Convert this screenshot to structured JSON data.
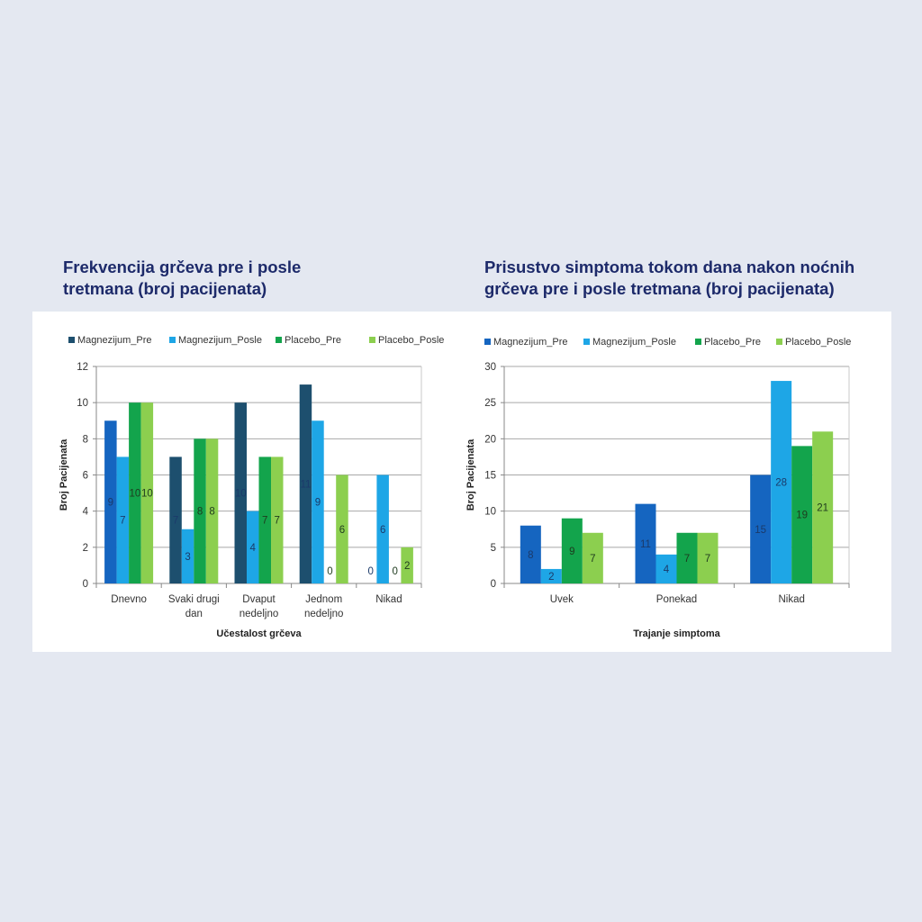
{
  "chart_data": [
    {
      "type": "bar",
      "title": "Frekvencija grčeva pre i posle tretmana (broj pacijenata)",
      "title_lines": [
        "Frekvencija grčeva pre i posle",
        "tretmana (broj pacijenata)"
      ],
      "xlabel": "Učestalost grčeva",
      "ylabel": "Broj Pacijenata",
      "ylim": [
        0,
        12
      ],
      "yticks": [
        0,
        2,
        4,
        6,
        8,
        10,
        12
      ],
      "grid": true,
      "legend": "top",
      "categories": [
        "Dnevno",
        "Svaki drugi dan",
        "Dvaput nedeljno",
        "Jednom nedeljno",
        "Nikad"
      ],
      "category_lines": [
        [
          "Dnevno"
        ],
        [
          "Svaki drugi",
          "dan"
        ],
        [
          "Dvaput",
          "nedeljno"
        ],
        [
          "Jednom",
          "nedeljno"
        ],
        [
          "Nikad"
        ]
      ],
      "series": [
        {
          "name": "Magnezijum_Pre",
          "color": "#1d4f6e",
          "point_colors": [
            "#1565c0",
            null,
            null,
            null,
            null
          ],
          "values": [
            9,
            7,
            10,
            11,
            0
          ]
        },
        {
          "name": "Magnezijum_Posle",
          "color": "#1ea6e6",
          "values": [
            7,
            3,
            4,
            9,
            6
          ]
        },
        {
          "name": "Placebo_Pre",
          "color": "#13a44c",
          "values": [
            10,
            8,
            7,
            0,
            0
          ]
        },
        {
          "name": "Placebo_Posle",
          "color": "#8ccf4f",
          "values": [
            10,
            8,
            7,
            6,
            2
          ]
        }
      ]
    },
    {
      "type": "bar",
      "title": "Prisustvo simptoma tokom dana nakon noćnih grčeva pre i posle tretmana (broj pacijenata)",
      "title_lines": [
        "Prisustvo simptoma tokom dana nakon noćnih",
        "grčeva pre i posle tretmana (broj pacijenata)"
      ],
      "xlabel": "Trajanje simptoma",
      "ylabel": "Broj Pacijenata",
      "ylim": [
        0,
        30
      ],
      "yticks": [
        0,
        5,
        10,
        15,
        20,
        25,
        30
      ],
      "grid": true,
      "legend": "top",
      "categories": [
        "Uvek",
        "Ponekad",
        "Nikad"
      ],
      "category_lines": [
        [
          "Uvek"
        ],
        [
          "Ponekad"
        ],
        [
          "Nikad"
        ]
      ],
      "series": [
        {
          "name": "Magnezijum_Pre",
          "color": "#1565c0",
          "values": [
            8,
            11,
            15
          ]
        },
        {
          "name": "Magnezijum_Posle",
          "color": "#1ea6e6",
          "values": [
            2,
            4,
            28
          ]
        },
        {
          "name": "Placebo_Pre",
          "color": "#13a44c",
          "values": [
            9,
            7,
            19
          ]
        },
        {
          "name": "Placebo_Posle",
          "color": "#8ccf4f",
          "values": [
            7,
            7,
            21
          ]
        }
      ]
    }
  ]
}
